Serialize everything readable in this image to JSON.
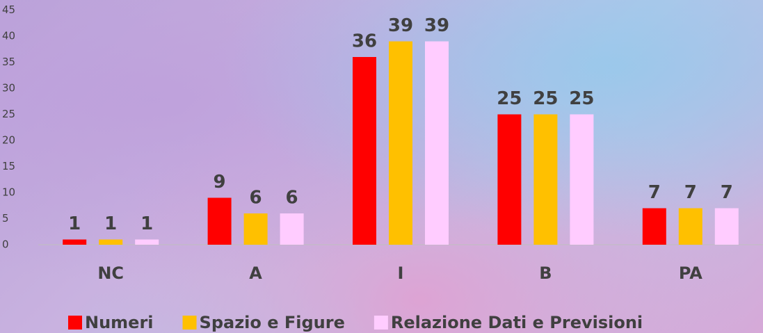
{
  "chart_data": {
    "type": "bar",
    "categories": [
      "NC",
      "A",
      "I",
      "B",
      "PA"
    ],
    "series": [
      {
        "name": "Numeri",
        "color": "#ff0000",
        "values": [
          1,
          9,
          36,
          25,
          7
        ]
      },
      {
        "name": "Spazio e Figure",
        "color": "#ffc000",
        "values": [
          1,
          6,
          39,
          25,
          7
        ]
      },
      {
        "name": "Relazione Dati e Previsioni",
        "color": "#ffccff",
        "values": [
          1,
          6,
          39,
          25,
          7
        ]
      }
    ],
    "ylim": [
      0,
      45
    ],
    "yticks": [
      0,
      5,
      10,
      15,
      20,
      25,
      30,
      35,
      40,
      45
    ],
    "grid": false,
    "data_labels": true,
    "legend": "bottom"
  }
}
